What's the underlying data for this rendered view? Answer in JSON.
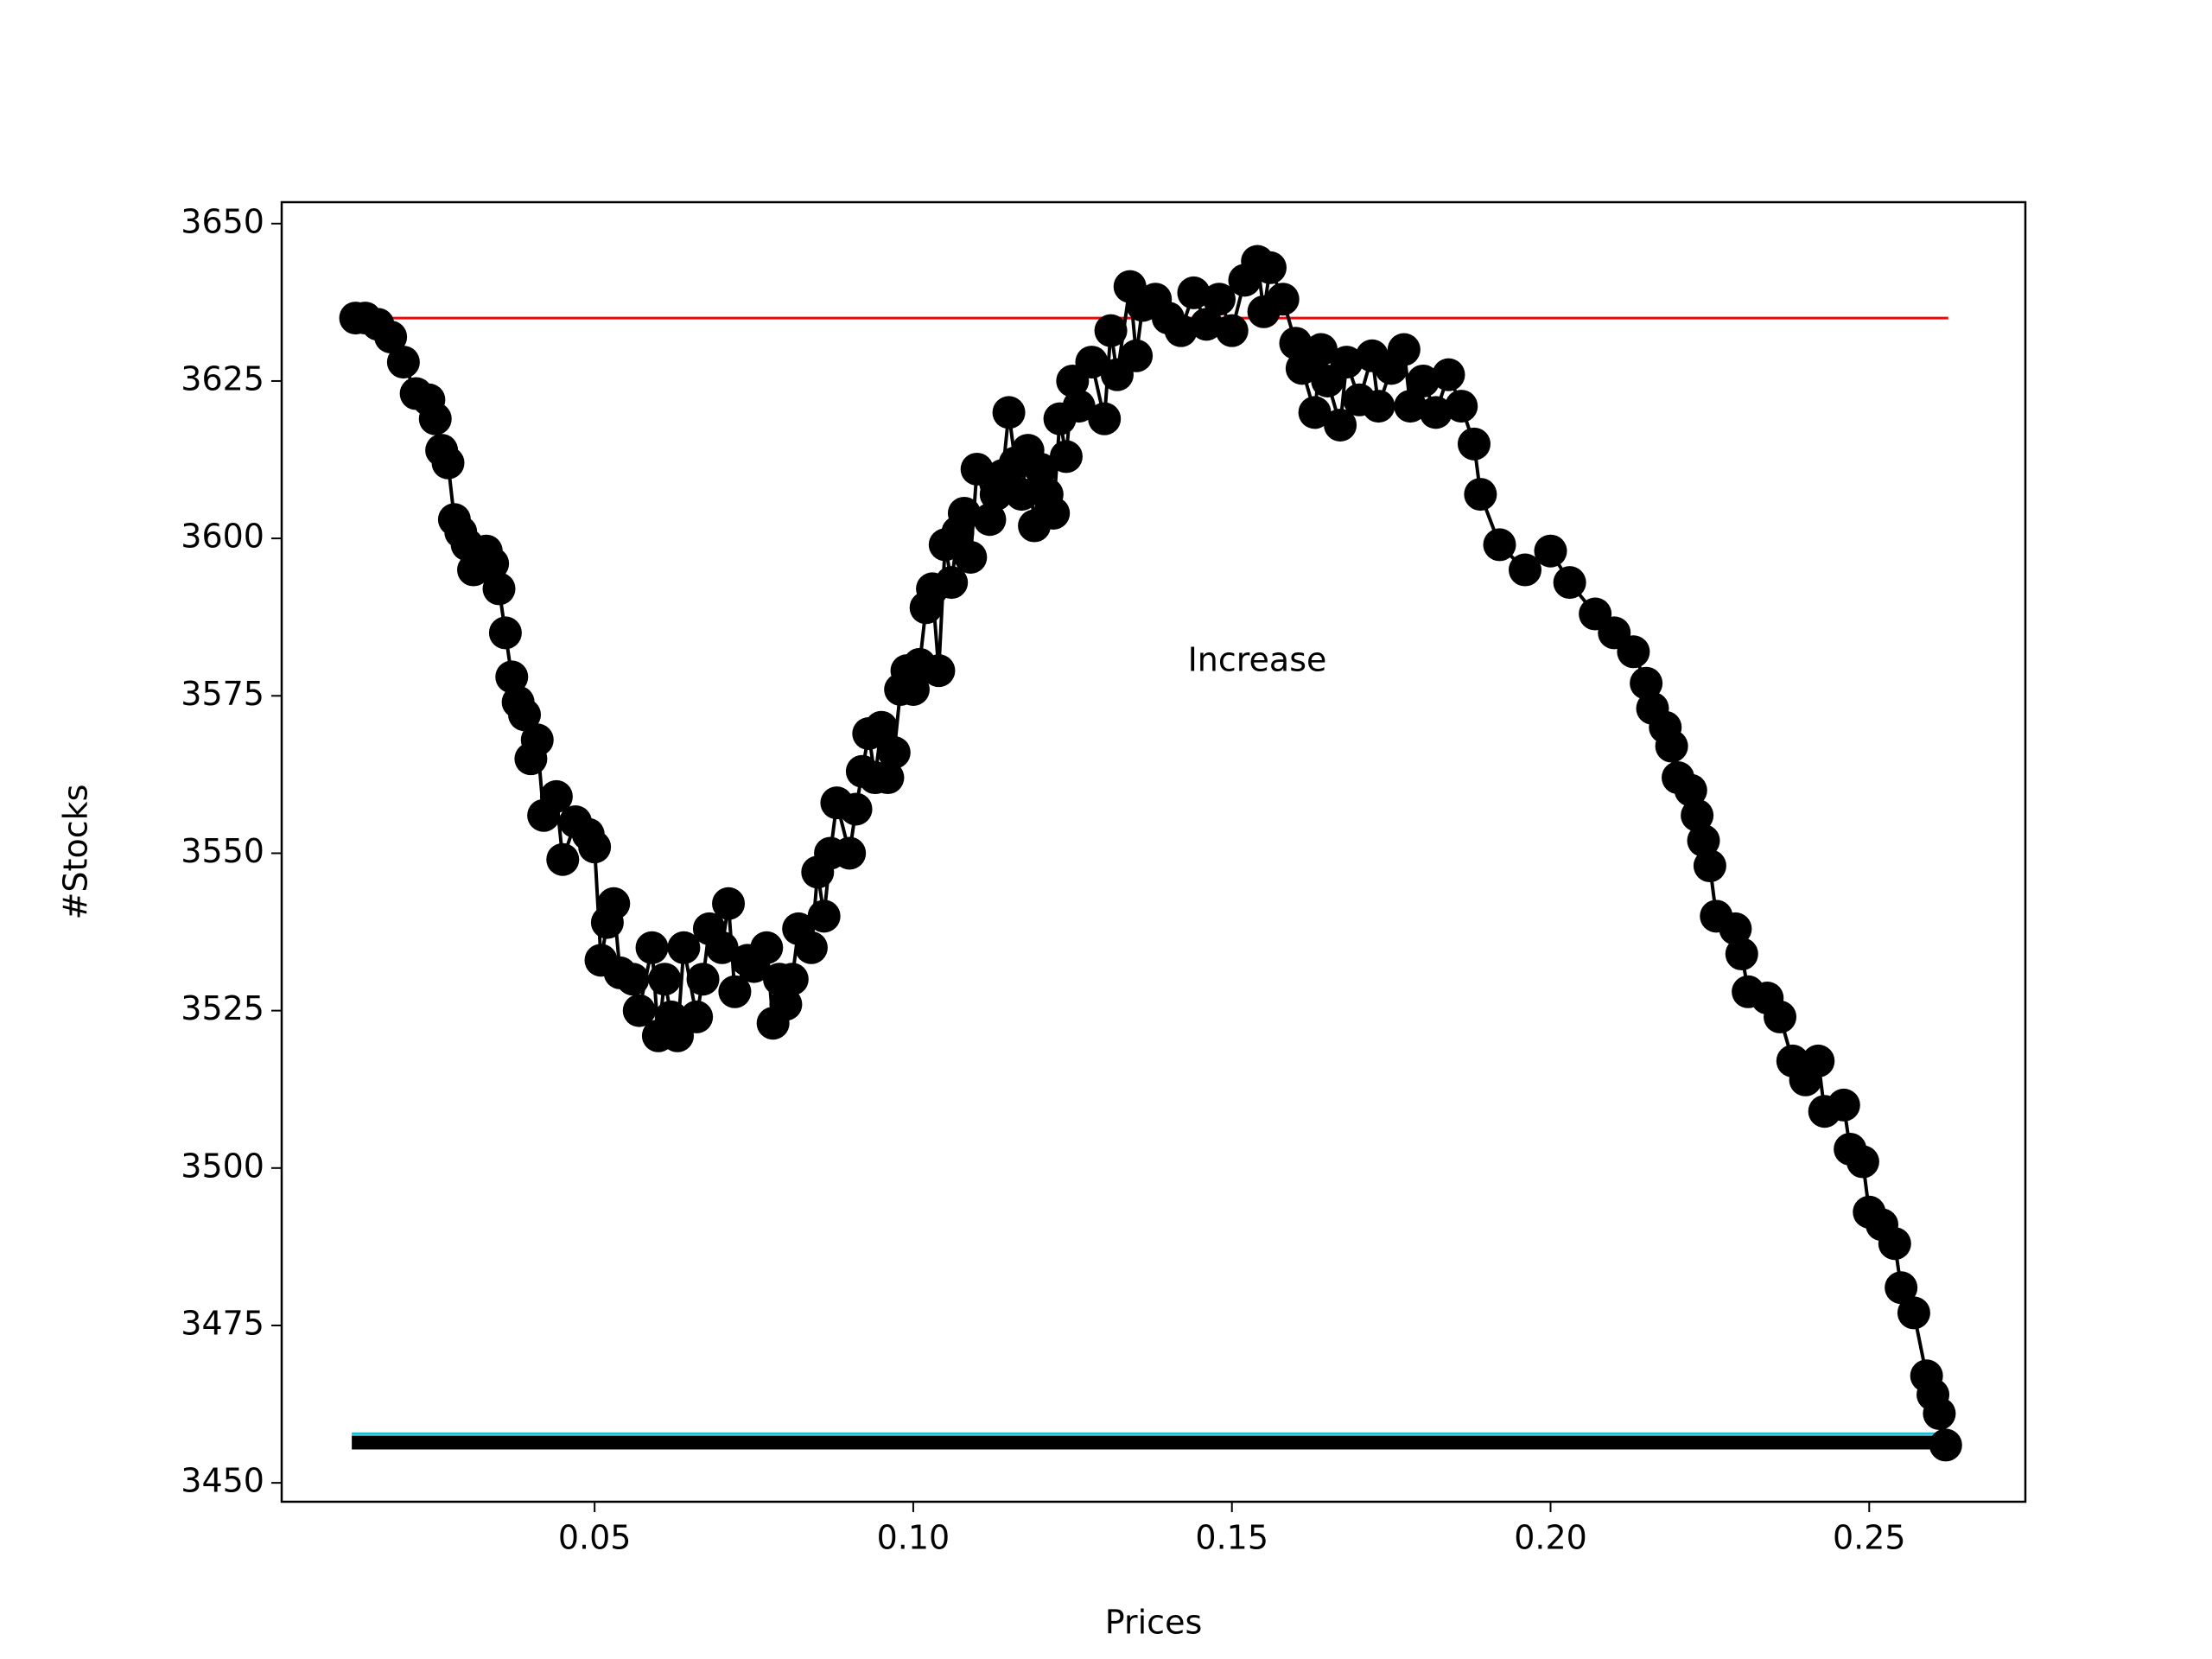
{
  "chart_data": {
    "type": "line",
    "xlabel": "Prices",
    "ylabel": "#Stocks",
    "annotation": "Increase",
    "x": [
      0.0125,
      0.014,
      0.016,
      0.018,
      0.02,
      0.022,
      0.024,
      0.025,
      0.026,
      0.027,
      0.028,
      0.029,
      0.03,
      0.031,
      0.033,
      0.034,
      0.035,
      0.036,
      0.037,
      0.038,
      0.039,
      0.04,
      0.041,
      0.042,
      0.044,
      0.045,
      0.047,
      0.049,
      0.05,
      0.051,
      0.052,
      0.053,
      0.054,
      0.056,
      0.057,
      0.059,
      0.06,
      0.061,
      0.062,
      0.063,
      0.064,
      0.066,
      0.067,
      0.068,
      0.07,
      0.071,
      0.072,
      0.074,
      0.075,
      0.077,
      0.078,
      0.079,
      0.08,
      0.081,
      0.082,
      0.084,
      0.085,
      0.086,
      0.087,
      0.088,
      0.09,
      0.091,
      0.092,
      0.093,
      0.094,
      0.095,
      0.096,
      0.097,
      0.098,
      0.099,
      0.1,
      0.101,
      0.102,
      0.103,
      0.104,
      0.105,
      0.106,
      0.107,
      0.108,
      0.109,
      0.11,
      0.112,
      0.113,
      0.114,
      0.115,
      0.116,
      0.117,
      0.118,
      0.119,
      0.12,
      0.121,
      0.122,
      0.123,
      0.124,
      0.125,
      0.126,
      0.128,
      0.13,
      0.131,
      0.132,
      0.134,
      0.135,
      0.136,
      0.138,
      0.14,
      0.142,
      0.144,
      0.146,
      0.148,
      0.15,
      0.152,
      0.154,
      0.155,
      0.156,
      0.158,
      0.16,
      0.161,
      0.163,
      0.164,
      0.165,
      0.167,
      0.168,
      0.17,
      0.172,
      0.173,
      0.175,
      0.177,
      0.178,
      0.18,
      0.182,
      0.184,
      0.186,
      0.188,
      0.189,
      0.192,
      0.196,
      0.2,
      0.203,
      0.207,
      0.21,
      0.213,
      0.215,
      0.216,
      0.218,
      0.219,
      0.22,
      0.222,
      0.223,
      0.224,
      0.225,
      0.226,
      0.229,
      0.23,
      0.231,
      0.234,
      0.236,
      0.238,
      0.24,
      0.242,
      0.243,
      0.246,
      0.247,
      0.249,
      0.25,
      0.252,
      0.254,
      0.255,
      0.257,
      0.259,
      0.26,
      0.261,
      0.262
    ],
    "series": [
      {
        "color": "#000000",
        "values": [
          3635,
          3635,
          3634,
          3632,
          3628,
          3623,
          3622,
          3619,
          3614,
          3612,
          3603,
          3601,
          3599,
          3595,
          3598,
          3596,
          3592,
          3585,
          3578,
          3574,
          3572,
          3565,
          3568,
          3556,
          3559,
          3549,
          3555,
          3553,
          3551,
          3533,
          3539,
          3542,
          3531,
          3530,
          3525,
          3535,
          3521,
          3530,
          3524,
          3521,
          3535,
          3524,
          3530,
          3538,
          3535,
          3542,
          3528,
          3533,
          3532,
          3535,
          3523,
          3530,
          3526,
          3530,
          3538,
          3535,
          3547,
          3540,
          3550,
          3558,
          3550,
          3557,
          3563,
          3569,
          3562,
          3570,
          3562,
          3566,
          3576,
          3579,
          3576,
          3580,
          3589,
          3592,
          3579,
          3599,
          3593,
          3601,
          3604,
          3597,
          3611,
          3603,
          3607,
          3610,
          3620,
          3612,
          3607,
          3614,
          3602,
          3611,
          3607,
          3604,
          3619,
          3613,
          3625,
          3621,
          3628,
          3619,
          3633,
          3626,
          3640,
          3629,
          3637,
          3638,
          3635,
          3633,
          3639,
          3634,
          3638,
          3633,
          3641,
          3644,
          3636,
          3643,
          3638,
          3631,
          3627,
          3620,
          3630,
          3625,
          3618,
          3628,
          3622,
          3629,
          3621,
          3627,
          3630,
          3621,
          3625,
          3620,
          3626,
          3621,
          3615,
          3607,
          3599,
          3595,
          3598,
          3593,
          3588,
          3585,
          3582,
          3577,
          3573,
          3570,
          3567,
          3562,
          3560,
          3556,
          3552,
          3548,
          3540,
          3538,
          3534,
          3528,
          3527,
          3524,
          3517,
          3514,
          3517,
          3509,
          3510,
          3503,
          3501,
          3493,
          3491,
          3488,
          3481,
          3477,
          3467,
          3464,
          3461,
          3456
        ]
      }
    ],
    "reference_lines": [
      {
        "y": 3635,
        "xmin": 0.0171,
        "xmax": 0.2624,
        "color": "#ff0000",
        "width": 3
      },
      {
        "y": 3457.8,
        "xmin": 0.0119,
        "xmax": 0.2624,
        "color": "#17becf",
        "width": 3
      },
      {
        "y": 3456.4,
        "xmin": 0.0119,
        "xmax": 0.2624,
        "color": "#000000",
        "width": 16
      }
    ],
    "xlim": [
      0.0009,
      0.2745
    ],
    "ylim": [
      3447.0,
      3653.4
    ],
    "xticks": [
      0.05,
      {
        "value": 0.1,
        "label": "0.10"
      },
      0.15,
      {
        "value": 0.2,
        "label": "0.20"
      },
      0.25
    ],
    "yticks": [
      3450,
      3475,
      3500,
      3525,
      3550,
      3575,
      3600,
      3625,
      3650
    ]
  }
}
